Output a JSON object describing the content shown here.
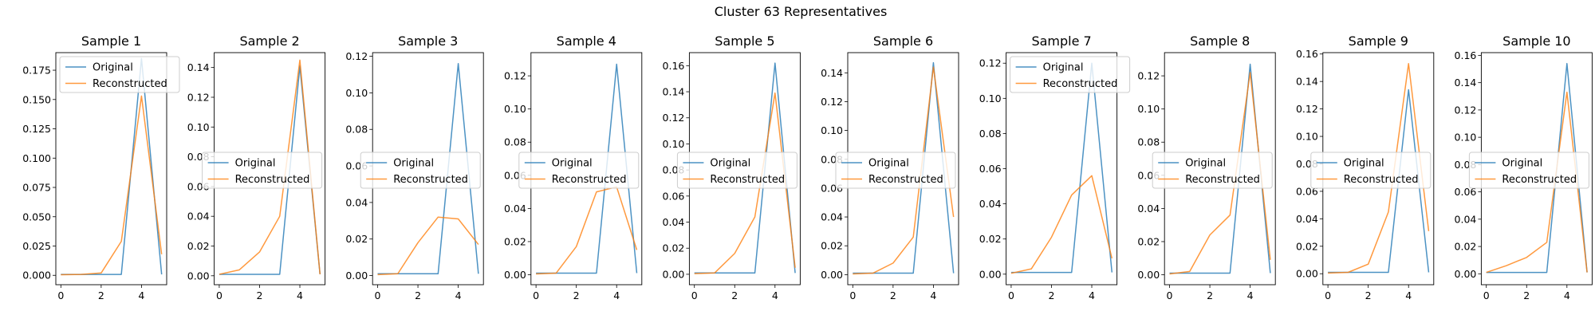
{
  "figure_title": "Cluster 63 Representatives",
  "colors": {
    "original": "#1f77b4",
    "reconstructed": "#ff7f0e"
  },
  "legend_labels": [
    "Original",
    "Reconstructed"
  ],
  "chart_data": [
    {
      "type": "line",
      "title": "Sample 1",
      "legend_position": "upper-left",
      "x": [
        0,
        1,
        2,
        3,
        4,
        5
      ],
      "ylim": [
        -0.008,
        0.19
      ],
      "yticks": [
        0.0,
        0.025,
        0.05,
        0.075,
        0.1,
        0.125,
        0.15,
        0.175
      ],
      "ytick_labels": [
        "0.000",
        "0.025",
        "0.050",
        "0.075",
        "0.100",
        "0.125",
        "0.150",
        "0.175"
      ],
      "series": [
        {
          "name": "Original",
          "values": [
            0.0008,
            0.0008,
            0.0008,
            0.0008,
            0.185,
            0.0008
          ]
        },
        {
          "name": "Reconstructed",
          "values": [
            0.0005,
            0.0008,
            0.002,
            0.029,
            0.153,
            0.018
          ]
        }
      ]
    },
    {
      "type": "line",
      "title": "Sample 2",
      "legend_position": "center-left",
      "x": [
        0,
        1,
        2,
        3,
        4,
        5
      ],
      "ylim": [
        -0.006,
        0.15
      ],
      "yticks": [
        0.0,
        0.02,
        0.04,
        0.06,
        0.08,
        0.1,
        0.12,
        0.14
      ],
      "ytick_labels": [
        "0.00",
        "0.02",
        "0.04",
        "0.06",
        "0.08",
        "0.10",
        "0.12",
        "0.14"
      ],
      "series": [
        {
          "name": "Original",
          "values": [
            0.001,
            0.001,
            0.001,
            0.001,
            0.141,
            0.001
          ]
        },
        {
          "name": "Reconstructed",
          "values": [
            0.001,
            0.004,
            0.016,
            0.04,
            0.145,
            0.001
          ]
        }
      ]
    },
    {
      "type": "line",
      "title": "Sample 3",
      "legend_position": "center-left",
      "x": [
        0,
        1,
        2,
        3,
        4,
        5
      ],
      "ylim": [
        -0.005,
        0.122
      ],
      "yticks": [
        0.0,
        0.02,
        0.04,
        0.06,
        0.08,
        0.1,
        0.12
      ],
      "ytick_labels": [
        "0.00",
        "0.02",
        "0.04",
        "0.06",
        "0.08",
        "0.10",
        "0.12"
      ],
      "series": [
        {
          "name": "Original",
          "values": [
            0.001,
            0.001,
            0.001,
            0.001,
            0.116,
            0.001
          ]
        },
        {
          "name": "Reconstructed",
          "values": [
            0.0005,
            0.001,
            0.018,
            0.032,
            0.031,
            0.017
          ]
        }
      ]
    },
    {
      "type": "line",
      "title": "Sample 4",
      "legend_position": "center-left",
      "x": [
        0,
        1,
        2,
        3,
        4,
        5
      ],
      "ylim": [
        -0.006,
        0.134
      ],
      "yticks": [
        0.0,
        0.02,
        0.04,
        0.06,
        0.08,
        0.1,
        0.12
      ],
      "ytick_labels": [
        "0.00",
        "0.02",
        "0.04",
        "0.06",
        "0.08",
        "0.10",
        "0.12"
      ],
      "series": [
        {
          "name": "Original",
          "values": [
            0.001,
            0.001,
            0.001,
            0.001,
            0.127,
            0.001
          ]
        },
        {
          "name": "Reconstructed",
          "values": [
            0.0005,
            0.001,
            0.017,
            0.05,
            0.053,
            0.015
          ]
        }
      ]
    },
    {
      "type": "line",
      "title": "Sample 5",
      "legend_position": "center-left",
      "x": [
        0,
        1,
        2,
        3,
        4,
        5
      ],
      "ylim": [
        -0.008,
        0.17
      ],
      "yticks": [
        0.0,
        0.02,
        0.04,
        0.06,
        0.08,
        0.1,
        0.12,
        0.14,
        0.16
      ],
      "ytick_labels": [
        "0.00",
        "0.02",
        "0.04",
        "0.06",
        "0.08",
        "0.10",
        "0.12",
        "0.14",
        "0.16"
      ],
      "series": [
        {
          "name": "Original",
          "values": [
            0.001,
            0.001,
            0.001,
            0.001,
            0.162,
            0.001
          ]
        },
        {
          "name": "Reconstructed",
          "values": [
            0.0005,
            0.001,
            0.016,
            0.044,
            0.139,
            0.005
          ]
        }
      ]
    },
    {
      "type": "line",
      "title": "Sample 6",
      "legend_position": "center-left",
      "x": [
        0,
        1,
        2,
        3,
        4,
        5
      ],
      "ylim": [
        -0.007,
        0.154
      ],
      "yticks": [
        0.0,
        0.02,
        0.04,
        0.06,
        0.08,
        0.1,
        0.12,
        0.14
      ],
      "ytick_labels": [
        "0.00",
        "0.02",
        "0.04",
        "0.06",
        "0.08",
        "0.10",
        "0.12",
        "0.14"
      ],
      "series": [
        {
          "name": "Original",
          "values": [
            0.001,
            0.001,
            0.001,
            0.001,
            0.147,
            0.001
          ]
        },
        {
          "name": "Reconstructed",
          "values": [
            0.0005,
            0.001,
            0.008,
            0.026,
            0.144,
            0.04
          ]
        }
      ]
    },
    {
      "type": "line",
      "title": "Sample 7",
      "legend_position": "upper-left",
      "x": [
        0,
        1,
        2,
        3,
        4,
        5
      ],
      "ylim": [
        -0.006,
        0.126
      ],
      "yticks": [
        0.0,
        0.02,
        0.04,
        0.06,
        0.08,
        0.1,
        0.12
      ],
      "ytick_labels": [
        "0.00",
        "0.02",
        "0.04",
        "0.06",
        "0.08",
        "0.10",
        "0.12"
      ],
      "series": [
        {
          "name": "Original",
          "values": [
            0.001,
            0.001,
            0.001,
            0.001,
            0.12,
            0.001
          ]
        },
        {
          "name": "Reconstructed",
          "values": [
            0.0005,
            0.003,
            0.021,
            0.045,
            0.056,
            0.009
          ]
        }
      ]
    },
    {
      "type": "line",
      "title": "Sample 8",
      "legend_position": "center-left",
      "x": [
        0,
        1,
        2,
        3,
        4,
        5
      ],
      "ylim": [
        -0.006,
        0.134
      ],
      "yticks": [
        0.0,
        0.02,
        0.04,
        0.06,
        0.08,
        0.1,
        0.12
      ],
      "ytick_labels": [
        "0.00",
        "0.02",
        "0.04",
        "0.06",
        "0.08",
        "0.10",
        "0.12"
      ],
      "series": [
        {
          "name": "Original",
          "values": [
            0.001,
            0.001,
            0.001,
            0.001,
            0.127,
            0.001
          ]
        },
        {
          "name": "Reconstructed",
          "values": [
            0.0005,
            0.002,
            0.024,
            0.036,
            0.122,
            0.009
          ]
        }
      ]
    },
    {
      "type": "line",
      "title": "Sample 9",
      "legend_position": "center-left",
      "x": [
        0,
        1,
        2,
        3,
        4,
        5
      ],
      "ylim": [
        -0.008,
        0.161
      ],
      "yticks": [
        0.0,
        0.02,
        0.04,
        0.06,
        0.08,
        0.1,
        0.12,
        0.14,
        0.16
      ],
      "ytick_labels": [
        "0.00",
        "0.02",
        "0.04",
        "0.06",
        "0.08",
        "0.10",
        "0.12",
        "0.14",
        "0.16"
      ],
      "series": [
        {
          "name": "Original",
          "values": [
            0.001,
            0.001,
            0.001,
            0.001,
            0.134,
            0.001
          ]
        },
        {
          "name": "Reconstructed",
          "values": [
            0.0005,
            0.001,
            0.007,
            0.045,
            0.153,
            0.031
          ]
        }
      ]
    },
    {
      "type": "line",
      "title": "Sample 10",
      "legend_position": "center-left",
      "x": [
        0,
        1,
        2,
        3,
        4,
        5
      ],
      "ylim": [
        -0.008,
        0.162
      ],
      "yticks": [
        0.0,
        0.02,
        0.04,
        0.06,
        0.08,
        0.1,
        0.12,
        0.14,
        0.16
      ],
      "ytick_labels": [
        "0.00",
        "0.02",
        "0.04",
        "0.06",
        "0.08",
        "0.10",
        "0.12",
        "0.14",
        "0.16"
      ],
      "series": [
        {
          "name": "Original",
          "values": [
            0.001,
            0.001,
            0.001,
            0.001,
            0.154,
            0.001
          ]
        },
        {
          "name": "Reconstructed",
          "values": [
            0.001,
            0.006,
            0.012,
            0.023,
            0.133,
            0.001
          ]
        }
      ]
    }
  ],
  "xticks": [
    0,
    2,
    4
  ],
  "xtick_labels": [
    "0",
    "2",
    "4"
  ]
}
